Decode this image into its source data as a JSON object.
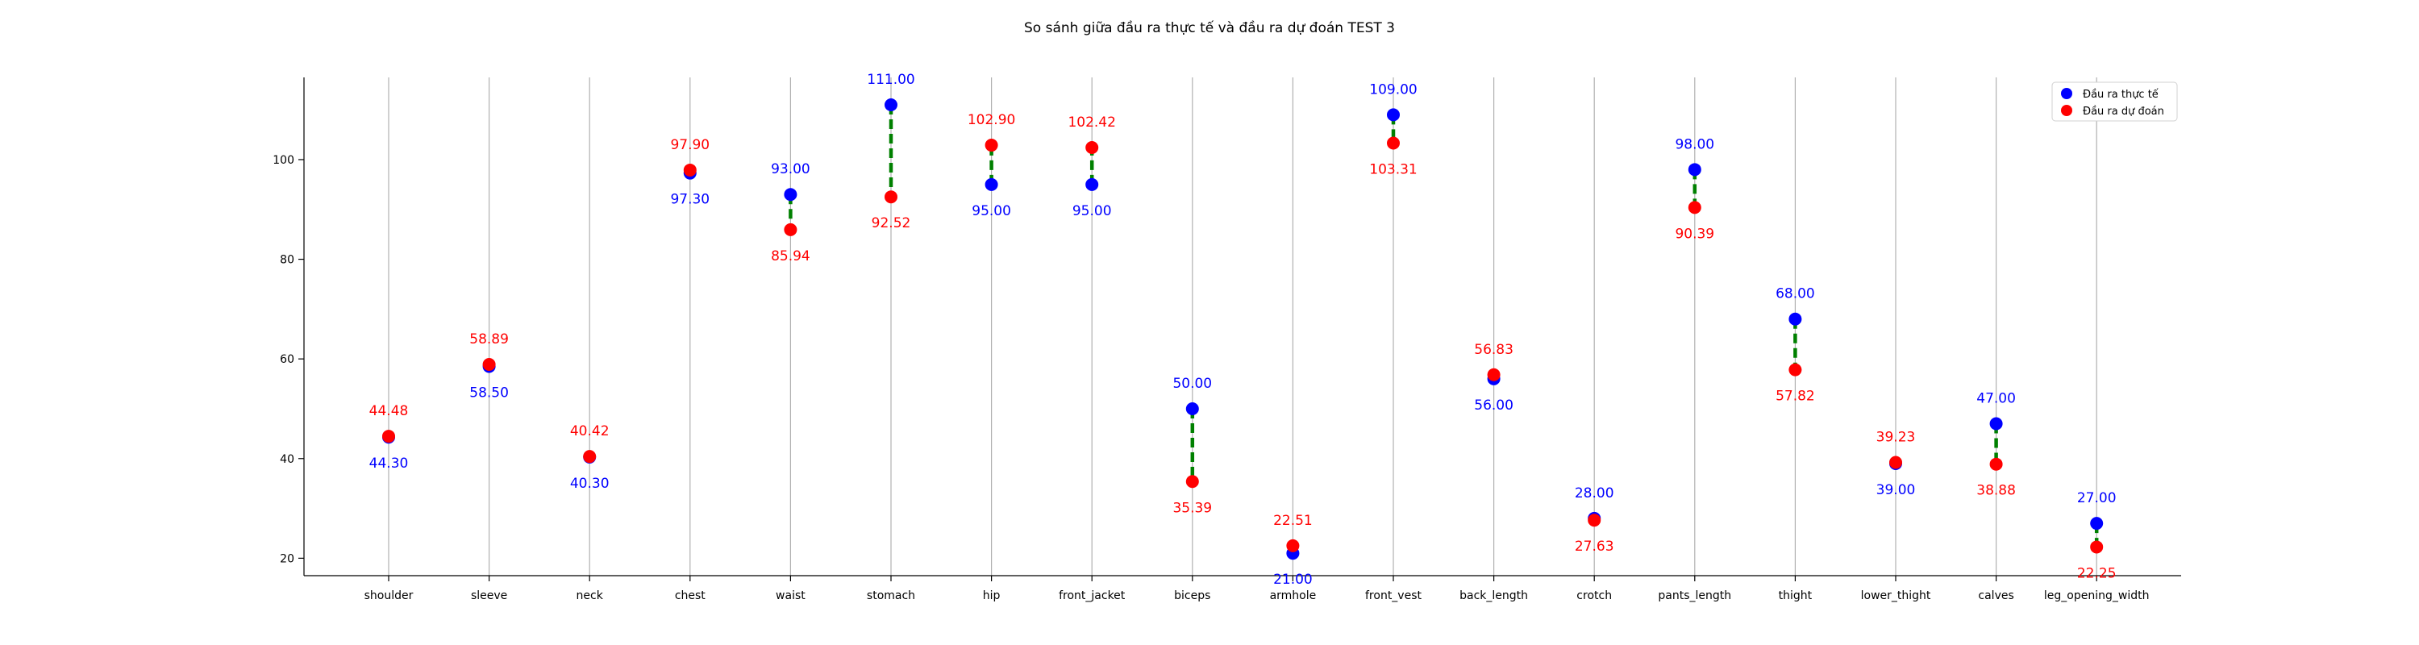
{
  "chart_data": {
    "type": "scatter",
    "title": "So sánh giữa đầu ra thực tế và đầu ra dự đoán TEST 3",
    "xlabel": "",
    "ylabel": "",
    "categories": [
      "shoulder",
      "sleeve",
      "neck",
      "chest",
      "waist",
      "stomach",
      "hip",
      "front_jacket",
      "biceps",
      "armhole",
      "front_vest",
      "back_length",
      "crotch",
      "pants_length",
      "thight",
      "lower_thight",
      "calves",
      "leg_opening_width"
    ],
    "series": [
      {
        "name": "Đầu ra thực tế",
        "color": "#0000ff",
        "values": [
          44.3,
          58.5,
          40.3,
          97.3,
          93.0,
          111.0,
          95.0,
          95.0,
          50.0,
          21.0,
          109.0,
          56.0,
          28.0,
          98.0,
          68.0,
          39.0,
          47.0,
          27.0
        ],
        "labels": [
          "44.30",
          "58.50",
          "40.30",
          "97.30",
          "93.00",
          "111.00",
          "95.00",
          "95.00",
          "50.00",
          "21.00",
          "109.00",
          "56.00",
          "28.00",
          "98.00",
          "68.00",
          "39.00",
          "47.00",
          "27.00"
        ]
      },
      {
        "name": "Đầu ra dự đoán",
        "color": "#ff0000",
        "values": [
          44.48,
          58.89,
          40.42,
          97.9,
          85.94,
          92.52,
          102.9,
          102.42,
          35.39,
          22.51,
          103.31,
          56.83,
          27.63,
          90.39,
          57.82,
          39.23,
          38.88,
          22.25
        ],
        "labels": [
          "44.48",
          "58.89",
          "40.42",
          "97.90",
          "85.94",
          "92.52",
          "102.90",
          "102.42",
          "35.39",
          "22.51",
          "103.31",
          "56.83",
          "27.63",
          "90.39",
          "57.82",
          "39.23",
          "38.88",
          "22.25"
        ]
      }
    ],
    "connector_color": "#008000",
    "yticks": [
      20,
      40,
      60,
      80,
      100
    ],
    "ylim": [
      16.5,
      116.5
    ],
    "grid": "vertical",
    "legend": "top-right"
  }
}
